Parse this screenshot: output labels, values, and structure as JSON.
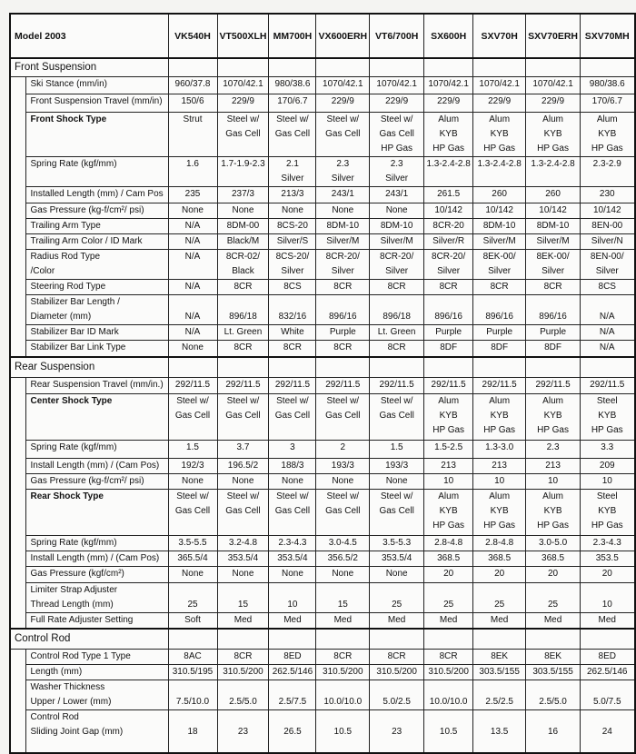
{
  "header": {
    "model_label": "Model 2003",
    "models": [
      "VK540H",
      "VT500XLH",
      "MM700H",
      "VX600ERH",
      "VT6/700H",
      "SX600H",
      "SXV70H",
      "SXV70ERH",
      "SXV70MH"
    ]
  },
  "sections": [
    {
      "title": "Front Suspension",
      "rows": [
        {
          "label": "Ski Stance (mm/in)",
          "values": [
            "960/37.8",
            "1070/42.1",
            "980/38.6",
            "1070/42.1",
            "1070/42.1",
            "1070/42.1",
            "1070/42.1",
            "1070/42.1",
            "980/38.6"
          ]
        },
        {
          "label": "Front Suspension Travel (mm/in)",
          "values": [
            "150/6",
            "229/9",
            "170/6.7",
            "229/9",
            "229/9",
            "229/9",
            "229/9",
            "229/9",
            "170/6.7"
          ]
        },
        {
          "label": "Front Shock Type",
          "bold": true,
          "values": [
            "Strut",
            "Steel w/\nGas Cell",
            "Steel w/\nGas Cell",
            "Steel w/\nGas Cell",
            "Steel w/\nGas Cell\nHP Gas",
            "Alum\nKYB\nHP Gas",
            "Alum\nKYB\nHP Gas",
            "Alum\nKYB\nHP Gas",
            "Alum\nKYB\nHP Gas"
          ]
        },
        {
          "label": "Spring Rate (kgf/mm)",
          "values": [
            "1.6",
            "1.7-1.9-2.3",
            "2.1\nSilver",
            "2.3\nSilver",
            "2.3\nSilver",
            "1.3-2.4-2.8",
            "1.3-2.4-2.8",
            "1.3-2.4-2.8",
            "2.3-2.9"
          ]
        },
        {
          "label": "Installed Length (mm) / Cam Pos",
          "values": [
            "235",
            "237/3",
            "213/3",
            "243/1",
            "243/1",
            "261.5",
            "260",
            "260",
            "230"
          ]
        },
        {
          "label": "Gas Pressure (kg-f/cm²/ psi)",
          "values": [
            "None",
            "None",
            "None",
            "None",
            "None",
            "10/142",
            "10/142",
            "10/142",
            "10/142"
          ]
        },
        {
          "label": "Trailing Arm Type",
          "values": [
            "N/A",
            "8DM-00",
            "8CS-20",
            "8DM-10",
            "8DM-10",
            "8CR-20",
            "8DM-10",
            "8DM-10",
            "8EN-00"
          ]
        },
        {
          "label": "Trailing Arm Color / ID Mark",
          "values": [
            "N/A",
            "Black/M",
            "Silver/S",
            "Silver/M",
            "Silver/M",
            "Silver/R",
            "Silver/M",
            "Silver/M",
            "Silver/N"
          ]
        },
        {
          "label": "Radius Rod Type\n/Color",
          "values": [
            "N/A",
            "8CR-02/\nBlack",
            "8CS-20/\nSilver",
            "8CR-20/\nSilver",
            "8CR-20/\nSilver",
            "8CR-20/\nSilver",
            "8EK-00/\nSilver",
            "8EK-00/\nSilver",
            "8EN-00/\nSilver"
          ]
        },
        {
          "label": "Steering Rod Type",
          "values": [
            "N/A",
            "8CR",
            "8CS",
            "8CR",
            "8CR",
            "8CR",
            "8CR",
            "8CR",
            "8CS"
          ]
        },
        {
          "label": "Stabilizer Bar Length /\nDiameter (mm)",
          "valign": "bottom",
          "values": [
            "N/A",
            "896/18",
            "832/16",
            "896/16",
            "896/18",
            "896/16",
            "896/16",
            "896/16",
            "N/A"
          ]
        },
        {
          "label": "Stabilizer Bar ID Mark",
          "values": [
            "N/A",
            "Lt. Green",
            "White",
            "Purple",
            "Lt. Green",
            "Purple",
            "Purple",
            "Purple",
            "N/A"
          ]
        },
        {
          "label": "Stabilizer Bar Link Type",
          "values": [
            "None",
            "8CR",
            "8CR",
            "8CR",
            "8CR",
            "8DF",
            "8DF",
            "8DF",
            "N/A"
          ]
        }
      ]
    },
    {
      "title": "Rear Suspension",
      "rows": [
        {
          "label": "Rear Suspension Travel (mm/in.)",
          "values": [
            "292/11.5",
            "292/11.5",
            "292/11.5",
            "292/11.5",
            "292/11.5",
            "292/11.5",
            "292/11.5",
            "292/11.5",
            "292/11.5"
          ]
        },
        {
          "label": "Center Shock Type",
          "bold": true,
          "values": [
            "Steel w/\nGas Cell",
            "Steel w/\nGas Cell",
            "Steel w/\nGas Cell",
            "Steel w/\nGas Cell",
            "Steel w/\nGas Cell",
            "Alum\nKYB\nHP Gas",
            "Alum\nKYB\nHP Gas",
            "Alum\nKYB\nHP Gas",
            "Steel\nKYB\nHP Gas"
          ]
        },
        {
          "label": "Spring Rate (kgf/mm)",
          "values": [
            "1.5",
            "3.7",
            "3",
            "2",
            "1.5",
            "1.5-2.5",
            "1.3-3.0",
            "2.3",
            "3.3"
          ]
        },
        {
          "label": "Install Length (mm) / (Cam Pos)",
          "values": [
            "192/3",
            "196.5/2",
            "188/3",
            "193/3",
            "193/3",
            "213",
            "213",
            "213",
            "209"
          ]
        },
        {
          "label": "Gas Pressure (kg-f/cm²/ psi)",
          "values": [
            "None",
            "None",
            "None",
            "None",
            "None",
            "10",
            "10",
            "10",
            "10"
          ]
        },
        {
          "label": "Rear Shock Type",
          "bold": true,
          "values": [
            "Steel w/\nGas Cell",
            "Steel w/\nGas Cell",
            "Steel w/\nGas Cell",
            "Steel w/\nGas Cell",
            "Steel w/\nGas Cell",
            "Alum\nKYB\nHP Gas",
            "Alum\nKYB\nHP Gas",
            "Alum\nKYB\nHP Gas",
            "Steel\nKYB\nHP Gas"
          ]
        },
        {
          "label": "Spring Rate (kgf/mm)",
          "values": [
            "3.5-5.5",
            "3.2-4.8",
            "2.3-4.3",
            "3.0-4.5",
            "3.5-5.3",
            "2.8-4.8",
            "2.8-4.8",
            "3.0-5.0",
            "2.3-4.3"
          ]
        },
        {
          "label": "Install Length (mm) / (Cam Pos)",
          "values": [
            "365.5/4",
            "353.5/4",
            "353.5/4",
            "356.5/2",
            "353.5/4",
            "368.5",
            "368.5",
            "368.5",
            "353.5"
          ]
        },
        {
          "label": "Gas Pressure (kgf/cm²)",
          "values": [
            "None",
            "None",
            "None",
            "None",
            "None",
            "20",
            "20",
            "20",
            "20"
          ]
        },
        {
          "label": "Limiter Strap Adjuster\nThread Length (mm)",
          "valign": "bottom",
          "values": [
            "25",
            "15",
            "10",
            "15",
            "25",
            "25",
            "25",
            "25",
            "10"
          ]
        },
        {
          "label": "Full Rate Adjuster Setting",
          "values": [
            "Soft",
            "Med",
            "Med",
            "Med",
            "Med",
            "Med",
            "Med",
            "Med",
            "Med"
          ]
        }
      ]
    },
    {
      "title": "Control Rod",
      "rows": [
        {
          "label": "Control Rod Type 1 Type",
          "values": [
            "8AC",
            "8CR",
            "8ED",
            "8CR",
            "8CR",
            "8CR",
            "8EK",
            "8EK",
            "8ED"
          ]
        },
        {
          "label": "Length (mm)",
          "values": [
            "310.5/195",
            "310.5/200",
            "262.5/146",
            "310.5/200",
            "310.5/200",
            "310.5/200",
            "303.5/155",
            "303.5/155",
            "262.5/146"
          ]
        },
        {
          "label": "Washer Thickness\nUpper / Lower (mm)",
          "valign": "bottom",
          "values": [
            "7.5/10.0",
            "2.5/5.0",
            "2.5/7.5",
            "10.0/10.0",
            "5.0/2.5",
            "10.0/10.0",
            "2.5/2.5",
            "2.5/5.0",
            "5.0/7.5"
          ]
        },
        {
          "label": "Control Rod\nSliding Joint Gap (mm)",
          "valign": "middle",
          "values": [
            "18",
            "23",
            "26.5",
            "10.5",
            "23",
            "10.5",
            "13.5",
            "16",
            "24"
          ]
        }
      ]
    }
  ]
}
